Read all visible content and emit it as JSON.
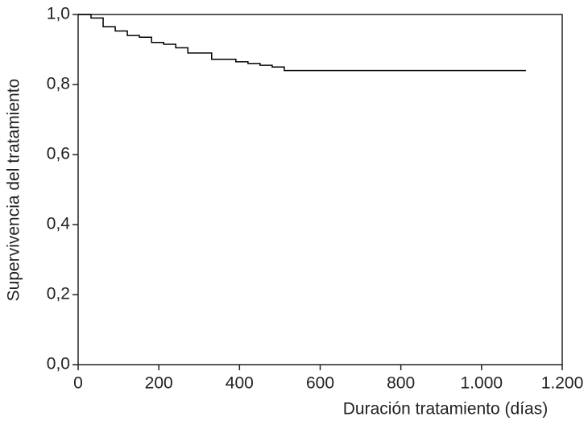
{
  "chart_data": {
    "type": "line",
    "step": "post",
    "xlabel": "Duración tratamiento (días)",
    "ylabel": "Supervivencia del tratamiento",
    "x": [
      0,
      32,
      62,
      92,
      122,
      152,
      182,
      212,
      242,
      272,
      331,
      391,
      421,
      451,
      481,
      511,
      1110
    ],
    "series": [
      {
        "color": "#000000",
        "values": [
          1,
          0.99,
          0.965,
          0.953,
          0.94,
          0.935,
          0.92,
          0.915,
          0.905,
          0.89,
          0.872,
          0.865,
          0.86,
          0.855,
          0.85,
          0.84,
          0.84
        ]
      }
    ],
    "xlim": [
      0,
      1200
    ],
    "xticks": [
      0,
      200,
      400,
      600,
      800,
      {
        "value": 1000,
        "label": "1.000"
      },
      {
        "value": 1200,
        "label": "1.200"
      }
    ],
    "ylim": [
      0,
      1
    ],
    "yticks": [
      {
        "value": 0,
        "label": "0,0"
      },
      {
        "value": 0.2,
        "label": "0,2"
      },
      {
        "value": 0.4,
        "label": "0,4"
      },
      {
        "value": 0.6,
        "label": "0,6"
      },
      {
        "value": 0.8,
        "label": "0,8"
      },
      {
        "value": 1,
        "label": "1,0"
      }
    ],
    "grid": false
  }
}
